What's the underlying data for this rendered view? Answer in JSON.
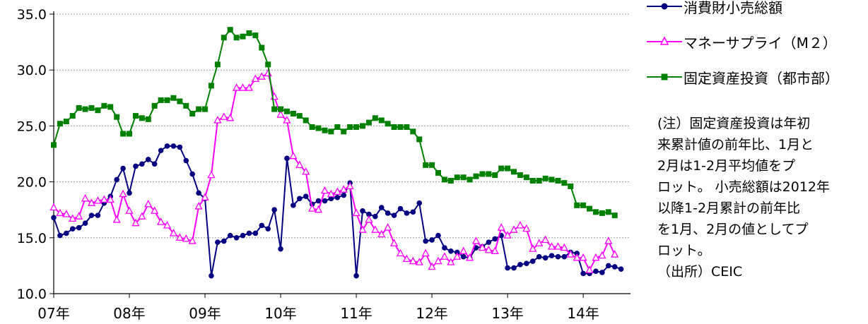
{
  "chart_data": {
    "type": "line",
    "x_ticks": [
      "07年",
      "08年",
      "09年",
      "10年",
      "11年",
      "12年",
      "13年",
      "14年"
    ],
    "y_ticks": [
      "10.0",
      "15.0",
      "20.0",
      "25.0",
      "30.0",
      "35.0"
    ],
    "ylim": [
      10,
      35
    ],
    "grid": "horizontal dotted",
    "legend_position": "top-right",
    "series": [
      {
        "name": "消費財小売総額",
        "color": "#000080",
        "marker": "circle",
        "values": [
          16.8,
          15.2,
          15.4,
          15.8,
          15.9,
          16.3,
          17.0,
          17.0,
          18.1,
          18.7,
          20.2,
          21.2,
          19.0,
          21.4,
          21.6,
          22.0,
          21.6,
          22.8,
          23.2,
          23.2,
          23.1,
          21.9,
          20.7,
          19.0,
          18.5,
          11.6,
          14.6,
          14.7,
          15.2,
          15.0,
          15.2,
          15.4,
          15.4,
          16.1,
          15.8,
          17.5,
          14.0,
          22.1,
          17.9,
          18.5,
          18.7,
          18.0,
          18.3,
          18.3,
          18.5,
          18.6,
          18.8,
          19.9,
          11.6,
          17.4,
          17.1,
          16.9,
          17.7,
          17.2,
          17.0,
          17.6,
          17.2,
          17.3,
          18.1,
          14.7,
          14.8,
          15.2,
          14.1,
          13.8,
          13.7,
          13.3,
          13.2,
          14.1,
          14.2,
          14.6,
          14.9,
          15.2,
          12.3,
          12.3,
          12.6,
          12.7,
          12.9,
          13.3,
          13.2,
          13.4,
          13.3,
          13.3,
          13.7,
          13.6,
          11.8,
          11.8,
          12.0,
          11.9,
          12.5,
          12.4,
          12.2
        ]
      },
      {
        "name": "マネーサプライ（M２）",
        "color": "#ff00ff",
        "marker": "triangle",
        "values": [
          17.7,
          17.2,
          17.1,
          16.7,
          16.9,
          18.5,
          18.1,
          18.3,
          18.4,
          18.4,
          16.6,
          18.9,
          17.4,
          16.3,
          16.9,
          18.0,
          17.4,
          16.4,
          16.1,
          15.4,
          15.0,
          14.9,
          14.7,
          17.8,
          18.6,
          20.6,
          25.5,
          25.8,
          25.7,
          28.4,
          28.4,
          28.4,
          29.2,
          29.4,
          29.7,
          27.6,
          26.0,
          25.5,
          22.3,
          21.5,
          20.9,
          17.6,
          17.5,
          19.2,
          18.9,
          19.1,
          19.3,
          19.6,
          17.2,
          15.7,
          16.6,
          15.7,
          15.3,
          15.9,
          14.5,
          13.6,
          13.1,
          12.9,
          12.8,
          13.6,
          12.4,
          12.9,
          13.3,
          12.8,
          13.3,
          13.8,
          13.2,
          14.7,
          14.1,
          13.9,
          13.8,
          15.9,
          15.2,
          15.7,
          16.1,
          15.8,
          14.0,
          14.5,
          14.8,
          14.2,
          14.2,
          14.1,
          13.5,
          13.2,
          13.2,
          12.1,
          13.2,
          13.4,
          14.7,
          13.5
        ]
      },
      {
        "name": "固定資産投資（都市部）",
        "color": "#008000",
        "marker": "square",
        "values": [
          23.3,
          25.2,
          25.4,
          25.9,
          26.6,
          26.5,
          26.6,
          26.4,
          26.8,
          26.7,
          25.8,
          24.3,
          24.3,
          25.9,
          25.7,
          25.6,
          26.8,
          27.3,
          27.3,
          27.5,
          27.2,
          26.8,
          26.1,
          26.5,
          26.5,
          28.6,
          30.5,
          32.9,
          33.6,
          32.9,
          33.0,
          33.3,
          33.1,
          32.0,
          30.5,
          26.5,
          26.5,
          26.3,
          26.1,
          25.9,
          25.5,
          24.9,
          24.8,
          24.6,
          24.5,
          24.9,
          24.5,
          24.9,
          24.9,
          25.0,
          25.3,
          25.7,
          25.5,
          25.2,
          24.9,
          24.9,
          24.9,
          24.5,
          23.8,
          21.5,
          21.5,
          20.8,
          20.2,
          20.1,
          20.4,
          20.4,
          20.2,
          20.5,
          20.7,
          20.7,
          20.6,
          21.2,
          21.2,
          20.9,
          20.6,
          20.4,
          20.1,
          20.1,
          20.3,
          20.2,
          20.1,
          19.9,
          19.6,
          17.9,
          17.9,
          17.6,
          17.3,
          17.2,
          17.3,
          17.0
        ]
      }
    ],
    "note_lines": [
      "(注）固定資産投資は年初",
      "来累計値の前年比、1月と",
      "2月は1-2月平均値をプ",
      "ロット。 小売総額は2012年",
      "以降1-2月累計の前年比",
      "を1月、2月の値としてプ",
      "ロット。",
      "（出所）CEIC"
    ]
  }
}
